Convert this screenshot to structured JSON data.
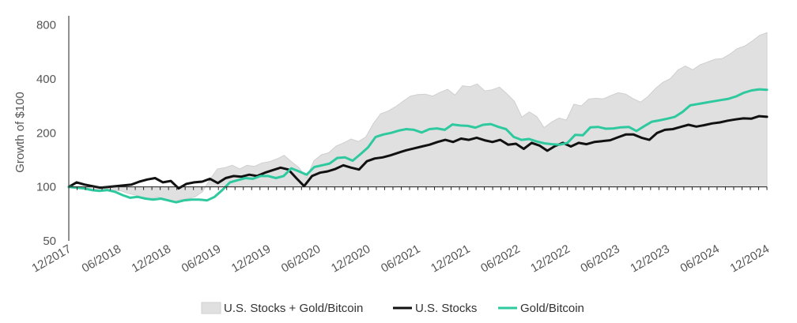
{
  "chart_data": {
    "type": "area",
    "ylabel": "Growth of $100",
    "yscale": "log",
    "ylim": [
      50,
      900
    ],
    "yticks": [
      50,
      100,
      200,
      400,
      800
    ],
    "ytick_labels": [
      "50",
      "100",
      "200",
      "400",
      "800"
    ],
    "xlim": [
      "12/2017",
      "12/2024"
    ],
    "xtick_labels": [
      "12/2017",
      "06/2018",
      "12/2018",
      "06/2019",
      "12/2019",
      "06/2020",
      "12/2020",
      "06/2021",
      "12/2021",
      "06/2022",
      "12/2022",
      "06/2023",
      "12/2023",
      "06/2024",
      "12/2024"
    ],
    "legend_position": "bottom",
    "colors": {
      "combined_fill": "#e0e0e0",
      "combined_stroke": "#cfcfcf",
      "us_stocks": "#111111",
      "gold_bitcoin": "#2ec99e",
      "axis": "#222222"
    },
    "series": [
      {
        "name": "U.S. Stocks + Gold/Bitcoin",
        "kind": "area",
        "values": [
          100,
          100,
          98,
          97,
          95,
          97,
          96,
          95,
          92,
          90,
          87,
          86,
          88,
          84,
          82,
          85,
          86,
          88,
          94,
          110,
          126,
          128,
          132,
          126,
          132,
          130,
          136,
          138,
          143,
          150,
          138,
          128,
          112,
          140,
          151,
          155,
          169,
          176,
          185,
          179,
          190,
          225,
          256,
          265,
          280,
          300,
          321,
          327,
          329,
          321,
          337,
          350,
          325,
          366,
          362,
          375,
          343,
          348,
          360,
          330,
          300,
          245,
          262,
          247,
          214,
          230,
          242,
          236,
          289,
          283,
          309,
          312,
          310,
          323,
          335,
          329,
          310,
          297,
          320,
          354,
          383,
          402,
          448,
          472,
          450,
          480,
          497,
          515,
          520,
          550,
          590,
          610,
          650,
          700,
          725
        ]
      },
      {
        "name": "U.S. Stocks",
        "kind": "line",
        "values": [
          100,
          106,
          103,
          101,
          99,
          100,
          101,
          102,
          103,
          107,
          110,
          112,
          106,
          108,
          98,
          104,
          106,
          107,
          111,
          105,
          112,
          115,
          114,
          117,
          115,
          120,
          124,
          128,
          125,
          112,
          101,
          115,
          120,
          122,
          126,
          132,
          128,
          125,
          139,
          144,
          146,
          150,
          155,
          160,
          164,
          168,
          172,
          178,
          183,
          178,
          186,
          183,
          188,
          182,
          178,
          183,
          172,
          174,
          163,
          176,
          170,
          159,
          169,
          176,
          168,
          176,
          173,
          178,
          180,
          182,
          189,
          196,
          196,
          188,
          183,
          200,
          208,
          210,
          216,
          222,
          217,
          221,
          226,
          229,
          234,
          238,
          241,
          240,
          248,
          246
        ]
      },
      {
        "name": "Gold/Bitcoin",
        "kind": "line",
        "values": [
          100,
          99,
          98,
          96,
          95,
          96,
          94,
          90,
          87,
          88,
          86,
          85,
          86,
          84,
          82,
          84,
          85,
          85,
          84,
          88,
          96,
          106,
          109,
          112,
          111,
          115,
          115,
          112,
          115,
          127,
          122,
          117,
          129,
          132,
          135,
          145,
          146,
          140,
          152,
          166,
          190,
          196,
          200,
          206,
          210,
          208,
          201,
          210,
          212,
          208,
          223,
          220,
          219,
          214,
          222,
          224,
          216,
          210,
          190,
          183,
          185,
          179,
          175,
          173,
          172,
          176,
          195,
          194,
          215,
          216,
          211,
          212,
          215,
          216,
          205,
          218,
          231,
          235,
          240,
          246,
          262,
          285,
          290,
          295,
          300,
          305,
          310,
          320,
          335,
          345,
          350,
          348
        ]
      }
    ]
  }
}
